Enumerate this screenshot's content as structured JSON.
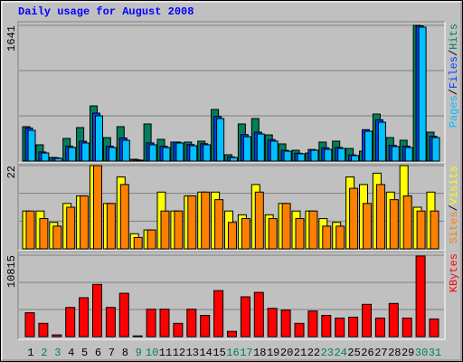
{
  "chart_data": [
    {
      "type": "bar",
      "title": "Daily usage for August 2008",
      "ylim": [
        0,
        1641
      ],
      "yticks": [
        1641
      ],
      "grid_divisions": 3,
      "legend_separator": "/",
      "series": [
        {
          "name": "Pages",
          "color": "#00c0ff",
          "values": [
            372,
            98,
            33,
            164,
            219,
            547,
            164,
            252,
            11,
            197,
            164,
            219,
            186,
            197,
            514,
            44,
            295,
            328,
            241,
            120,
            88,
            131,
            142,
            153,
            66,
            361,
            470,
            175,
            164,
            1619,
            284
          ]
        },
        {
          "name": "Files",
          "color": "#0040ff",
          "values": [
            400,
            110,
            40,
            180,
            240,
            580,
            180,
            280,
            15,
            220,
            180,
            230,
            200,
            210,
            540,
            50,
            320,
            350,
            260,
            130,
            95,
            140,
            160,
            165,
            75,
            380,
            500,
            190,
            180,
            1635,
            300
          ]
        },
        {
          "name": "Hits",
          "color": "#00805c",
          "values": [
            416,
            197,
            44,
            274,
            405,
            667,
            284,
            416,
            22,
            449,
            263,
            230,
            230,
            241,
            624,
            77,
            449,
            514,
            317,
            208,
            131,
            98,
            230,
            241,
            153,
            120,
            569,
            284,
            252,
            1641,
            350
          ]
        }
      ]
    },
    {
      "type": "bar",
      "ylim": [
        0,
        22
      ],
      "yticks": [
        22
      ],
      "grid_divisions": 3,
      "series": [
        {
          "name": "Sites",
          "color": "#ff8000",
          "values": [
            10,
            8,
            6,
            11,
            14,
            22,
            12,
            17,
            3,
            5,
            10,
            10,
            14,
            15,
            13,
            7,
            8,
            15,
            8,
            12,
            8,
            10,
            6,
            6,
            16,
            12,
            17,
            13,
            14,
            10,
            10
          ]
        },
        {
          "name": "Visits",
          "color": "#ffff00",
          "values": [
            10,
            10,
            7,
            12,
            14,
            22,
            12,
            19,
            4,
            5,
            15,
            10,
            14,
            15,
            15,
            10,
            9,
            17,
            9,
            12,
            10,
            10,
            8,
            7,
            19,
            17,
            20,
            15,
            22,
            11,
            15
          ]
        }
      ]
    },
    {
      "type": "bar",
      "ylim": [
        0,
        10815
      ],
      "yticks": [
        10815
      ],
      "grid_divisions": 3,
      "categories": [
        "1",
        "2",
        "3",
        "4",
        "5",
        "6",
        "7",
        "8",
        "9",
        "10",
        "11",
        "12",
        "13",
        "14",
        "15",
        "16",
        "17",
        "18",
        "19",
        "20",
        "21",
        "22",
        "23",
        "24",
        "25",
        "26",
        "27",
        "28",
        "29",
        "30",
        "31"
      ],
      "category_colors": [
        "#000000",
        "#00805c",
        "#00805c",
        "#000000",
        "#000000",
        "#000000",
        "#000000",
        "#000000",
        "#00805c",
        "#00805c",
        "#000000",
        "#000000",
        "#000000",
        "#000000",
        "#000000",
        "#00805c",
        "#00805c",
        "#000000",
        "#000000",
        "#000000",
        "#000000",
        "#000000",
        "#00805c",
        "#00805c",
        "#000000",
        "#000000",
        "#000000",
        "#000000",
        "#000000",
        "#00805c",
        "#00805c"
      ],
      "series": [
        {
          "name": "KBytes",
          "color": "#ff0000",
          "values": [
            3174,
            1764,
            235,
            3879,
            5172,
            6936,
            3879,
            5760,
            100,
            3644,
            3644,
            1764,
            3644,
            2821,
            6113,
            705,
            5290,
            5878,
            3762,
            3527,
            1764,
            3409,
            2821,
            2469,
            2586,
            4291,
            2469,
            4409,
            2469,
            10697,
            2351
          ]
        }
      ]
    }
  ]
}
